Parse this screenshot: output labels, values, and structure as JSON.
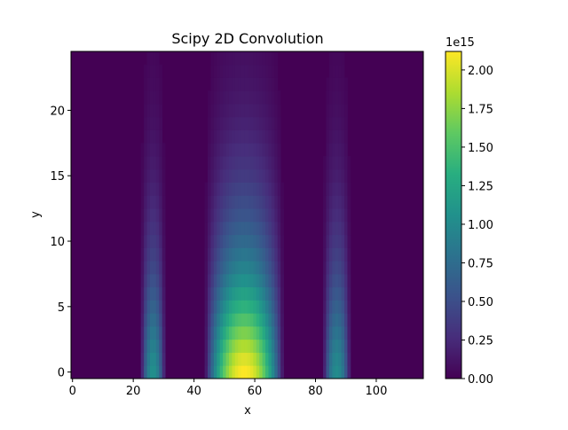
{
  "chart_data": {
    "type": "heatmap",
    "title": "Scipy 2D Convolution",
    "xlabel": "x",
    "ylabel": "y",
    "xlim": [
      -0.5,
      115.5
    ],
    "ylim": [
      -0.5,
      24.5
    ],
    "x_ticks": [
      0,
      20,
      40,
      60,
      80,
      100
    ],
    "y_ticks": [
      0,
      5,
      10,
      15,
      20
    ],
    "colormap": "viridis",
    "colorbar": {
      "min": 0.0,
      "max": 2.12,
      "offset_label": "1e15",
      "ticks": [
        "0.00",
        "0.25",
        "0.50",
        "0.75",
        "1.00",
        "1.25",
        "1.50",
        "1.75",
        "2.00"
      ],
      "tick_values": [
        0.0,
        0.25,
        0.5,
        0.75,
        1.0,
        1.25,
        1.5,
        1.75,
        2.0
      ]
    },
    "value_unit": "1e15",
    "band_profile_by_row": [
      1.0,
      0.95,
      0.88,
      0.8,
      0.72,
      0.64,
      0.57,
      0.5,
      0.44,
      0.39,
      0.34,
      0.3,
      0.26,
      0.23,
      0.2,
      0.17,
      0.15,
      0.13,
      0.11,
      0.095,
      0.08,
      0.068,
      0.058,
      0.05,
      0.043
    ],
    "bands": [
      {
        "name": "left stripe",
        "x_range": [
          23,
          30
        ],
        "peak": 1.05
      },
      {
        "name": "center stripe",
        "x_range": [
          44,
          69
        ],
        "peak": 2.12
      },
      {
        "name": "right stripe",
        "x_range": [
          83,
          91
        ],
        "peak": 1.02
      }
    ]
  }
}
